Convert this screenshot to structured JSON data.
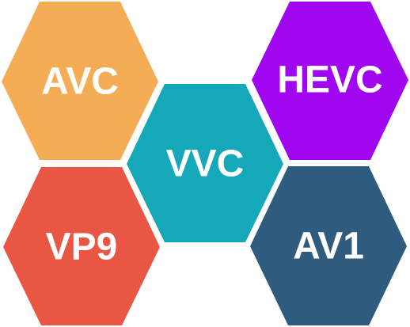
{
  "hexagons": [
    {
      "id": "avc",
      "label": "AVC",
      "color": "#F4AD54"
    },
    {
      "id": "hevc",
      "label": "HEVC",
      "color": "#A006EF"
    },
    {
      "id": "vvc",
      "label": "VVC",
      "color": "#14A8B8"
    },
    {
      "id": "vp9",
      "label": "VP9",
      "color": "#E95744"
    },
    {
      "id": "av1",
      "label": "AV1",
      "color": "#2F5B7E"
    }
  ]
}
